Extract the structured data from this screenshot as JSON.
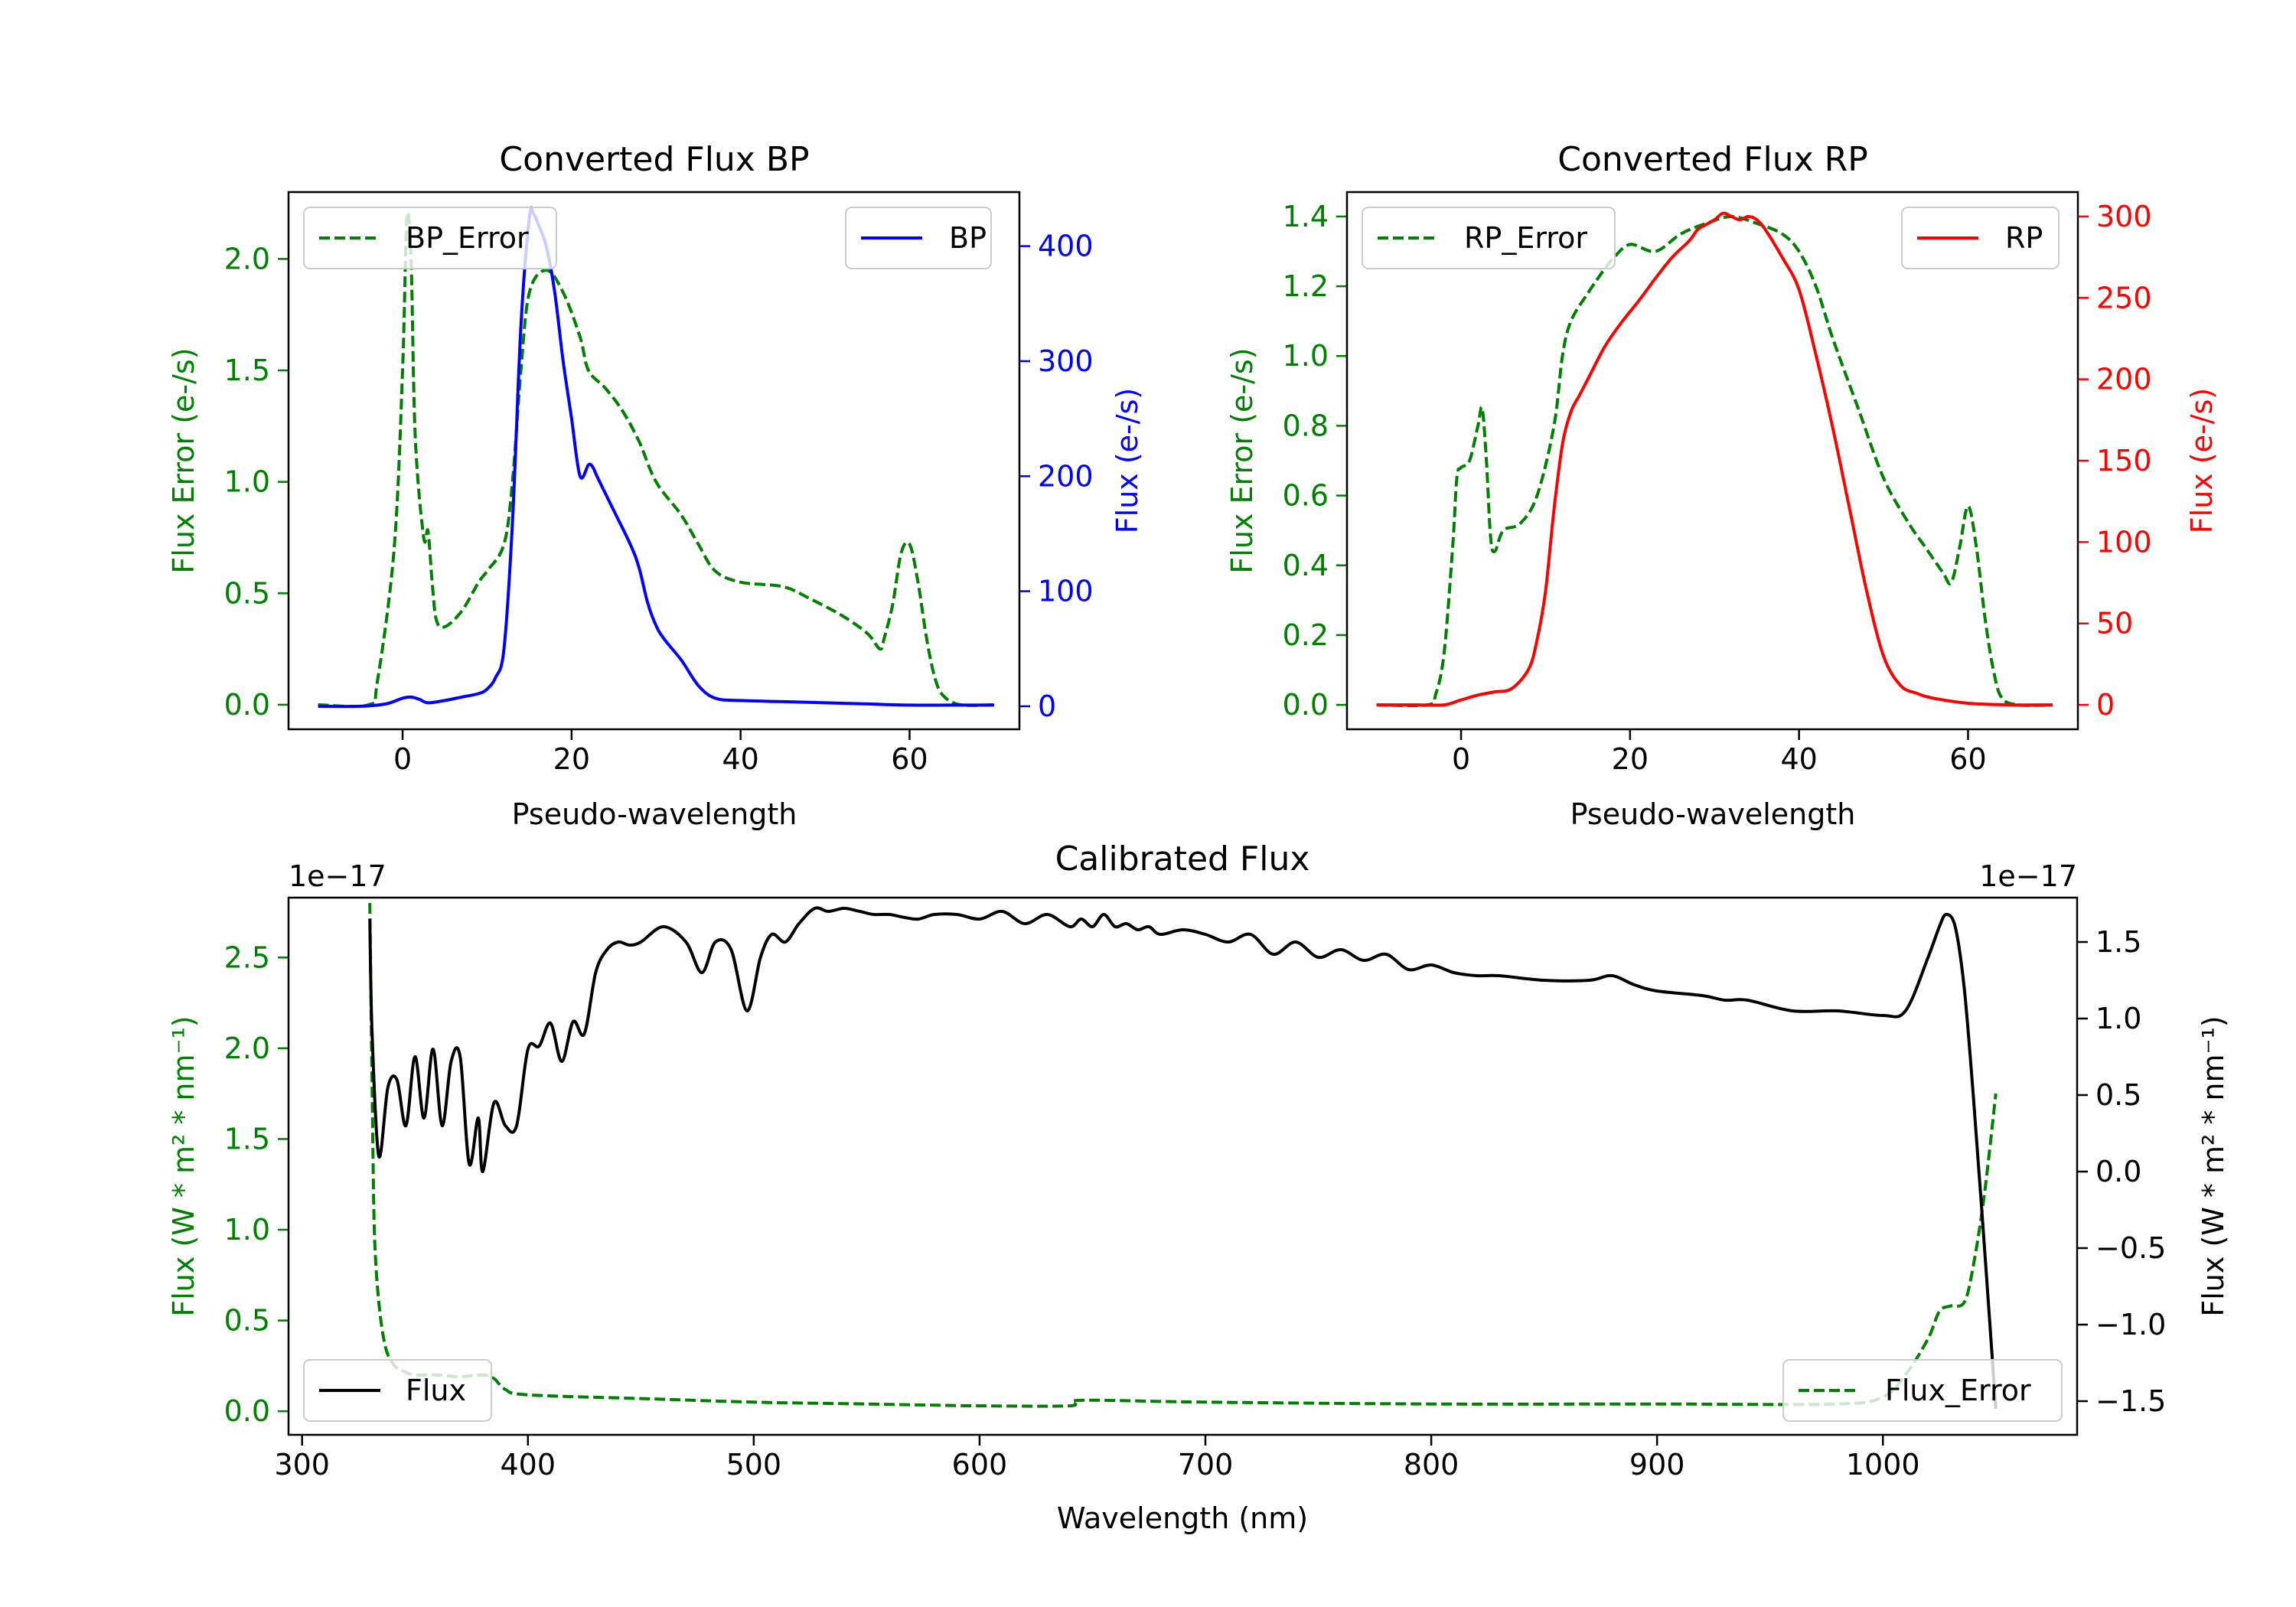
{
  "colors": {
    "bp": "#0000ff",
    "rp": "#ff0000",
    "error": "#008000",
    "flux": "#000000",
    "axis": "#000000"
  },
  "chart_data": [
    {
      "id": "bp",
      "type": "line",
      "title": "Converted Flux BP",
      "xlabel": "Pseudo-wavelength",
      "ylabel_left": "Flux Error (e-/s)",
      "ylabel_right": "Flux (e-/s)",
      "xlim": [
        -13.5,
        73
      ],
      "ylim_left": [
        -0.11,
        2.3
      ],
      "ylim_right": [
        -20,
        447
      ],
      "xticks": [
        0,
        20,
        40,
        60
      ],
      "yticks_left": [
        0.0,
        0.5,
        1.0,
        1.5,
        2.0
      ],
      "ytick_labels_left": [
        "0.0",
        "0.5",
        "1.0",
        "1.5",
        "2.0"
      ],
      "yticks_right": [
        0,
        100,
        200,
        300,
        400
      ],
      "ytick_labels_right": [
        "0",
        "100",
        "200",
        "300",
        "400"
      ],
      "legend_left": {
        "label": "BP_Error",
        "placement": "upper left"
      },
      "legend_right": {
        "label": "BP",
        "placement": "upper right"
      },
      "series": [
        {
          "name": "BP_Error",
          "axis": "left",
          "style": "dashed",
          "color": "#008000",
          "x": [
            -10,
            -4,
            -3,
            -1,
            0,
            0.5,
            1,
            1.5,
            2.5,
            3,
            3.5,
            4,
            5,
            7,
            9,
            10,
            12,
            13,
            14,
            15,
            17,
            19,
            21,
            22,
            24,
            26,
            28,
            30,
            33,
            35,
            37,
            40,
            45,
            48,
            52,
            55,
            56.5,
            57,
            58,
            59,
            60,
            61,
            62,
            63,
            64,
            66,
            70
          ],
          "y": [
            0.0,
            0.0,
            0.1,
            0.7,
            1.5,
            2.18,
            2.0,
            1.2,
            0.75,
            0.78,
            0.55,
            0.38,
            0.35,
            0.42,
            0.55,
            0.6,
            0.72,
            1.0,
            1.5,
            1.85,
            1.95,
            1.85,
            1.65,
            1.5,
            1.42,
            1.32,
            1.18,
            1.0,
            0.85,
            0.72,
            0.6,
            0.55,
            0.53,
            0.48,
            0.4,
            0.32,
            0.25,
            0.3,
            0.45,
            0.68,
            0.72,
            0.55,
            0.3,
            0.12,
            0.04,
            0.0,
            0.0
          ]
        },
        {
          "name": "BP",
          "axis": "right",
          "style": "solid",
          "color": "#0000ff",
          "x": [
            -10,
            -5,
            -2,
            0,
            1,
            2,
            3,
            5,
            7,
            9,
            10,
            11,
            12,
            13,
            14,
            15,
            15.5,
            16,
            17,
            18,
            19,
            20,
            21,
            22,
            22.5,
            23,
            24,
            25,
            27,
            28,
            29,
            30,
            31,
            33,
            35,
            37,
            40,
            45,
            50,
            55,
            60,
            65,
            70
          ],
          "y": [
            0,
            0,
            2,
            7,
            8,
            6,
            3,
            5,
            8,
            11,
            15,
            25,
            50,
            160,
            330,
            425,
            428,
            420,
            400,
            360,
            300,
            250,
            200,
            210,
            208,
            200,
            185,
            170,
            140,
            120,
            90,
            70,
            58,
            40,
            18,
            7,
            5,
            4,
            3,
            2,
            1,
            1,
            1
          ]
        }
      ]
    },
    {
      "id": "rp",
      "type": "line",
      "title": "Converted Flux RP",
      "xlabel": "Pseudo-wavelength",
      "ylabel_left": "Flux Error (e-/s)",
      "ylabel_right": "Flux (e-/s)",
      "xlim": [
        -13.5,
        73
      ],
      "ylim_left": [
        -0.07,
        1.47
      ],
      "ylim_right": [
        -15,
        315
      ],
      "xticks": [
        0,
        20,
        40,
        60
      ],
      "yticks_left": [
        0.0,
        0.2,
        0.4,
        0.6,
        0.8,
        1.0,
        1.2,
        1.4
      ],
      "ytick_labels_left": [
        "0.0",
        "0.2",
        "0.4",
        "0.6",
        "0.8",
        "1.0",
        "1.2",
        "1.4"
      ],
      "yticks_right": [
        0,
        50,
        100,
        150,
        200,
        250,
        300
      ],
      "ytick_labels_right": [
        "0",
        "50",
        "100",
        "150",
        "200",
        "250",
        "300"
      ],
      "legend_left": {
        "label": "RP_Error",
        "placement": "upper left"
      },
      "legend_right": {
        "label": "RP",
        "placement": "upper right"
      },
      "series": [
        {
          "name": "RP_Error",
          "axis": "left",
          "style": "dashed",
          "color": "#008000",
          "x": [
            -10,
            -4,
            -3,
            -2,
            -1,
            -0.5,
            0,
            1,
            2,
            2.5,
            3,
            3.5,
            4,
            5,
            7,
            9,
            11,
            12,
            13,
            15,
            17,
            18,
            20,
            23,
            26,
            29,
            32,
            35,
            38,
            40,
            42,
            44,
            47,
            50,
            53,
            55,
            57,
            58,
            59,
            60,
            61,
            62,
            63,
            64,
            66,
            70
          ],
          "y": [
            0.0,
            0.0,
            0.03,
            0.15,
            0.45,
            0.65,
            0.68,
            0.7,
            0.8,
            0.85,
            0.7,
            0.48,
            0.44,
            0.5,
            0.52,
            0.6,
            0.8,
            1.0,
            1.1,
            1.18,
            1.25,
            1.28,
            1.32,
            1.3,
            1.35,
            1.38,
            1.4,
            1.38,
            1.35,
            1.3,
            1.2,
            1.05,
            0.85,
            0.65,
            0.52,
            0.45,
            0.38,
            0.35,
            0.45,
            0.57,
            0.45,
            0.25,
            0.1,
            0.02,
            0.0,
            0.0
          ]
        },
        {
          "name": "RP",
          "axis": "right",
          "style": "solid",
          "color": "#ff0000",
          "x": [
            -10,
            -5,
            -2,
            0,
            2,
            4,
            6,
            8,
            9,
            10,
            11,
            12,
            13,
            14,
            15,
            17,
            19,
            21,
            23,
            25,
            27,
            28,
            29,
            30,
            31,
            32,
            33,
            34,
            35,
            36,
            38,
            40,
            42,
            44,
            46,
            48,
            50,
            52,
            54,
            56,
            60,
            65,
            70
          ],
          "y": [
            0,
            0,
            0,
            3,
            6,
            8,
            10,
            22,
            40,
            70,
            120,
            160,
            180,
            190,
            200,
            220,
            235,
            248,
            262,
            275,
            285,
            292,
            295,
            298,
            302,
            300,
            298,
            300,
            298,
            292,
            275,
            255,
            215,
            170,
            120,
            70,
            30,
            12,
            7,
            4,
            1,
            0,
            0
          ]
        }
      ]
    },
    {
      "id": "calibrated",
      "type": "line",
      "title": "Calibrated Flux",
      "xlabel": "Wavelength (nm)",
      "ylabel_left": "Flux (W * m² * nm⁻¹)",
      "ylabel_right": "Flux (W * m² * nm⁻¹)",
      "offset_left": "1e−17",
      "offset_right": "1e−17",
      "xlim": [
        294,
        1086
      ],
      "ylim_left": [
        -0.13,
        2.83
      ],
      "ylim_right": [
        -1.72,
        1.79
      ],
      "xticks": [
        300,
        400,
        500,
        600,
        700,
        800,
        900,
        1000
      ],
      "yticks_left": [
        0.0,
        0.5,
        1.0,
        1.5,
        2.0,
        2.5
      ],
      "ytick_labels_left": [
        "0.0",
        "0.5",
        "1.0",
        "1.5",
        "2.0",
        "2.5"
      ],
      "yticks_right": [
        -1.5,
        -1.0,
        -0.5,
        0.0,
        0.5,
        1.0,
        1.5
      ],
      "ytick_labels_right": [
        "−1.5",
        "−1.0",
        "−0.5",
        "0.0",
        "0.5",
        "1.0",
        "1.5"
      ],
      "legend_left": {
        "label": "Flux",
        "placement": "lower left"
      },
      "legend_right": {
        "label": "Flux_Error",
        "placement": "lower right"
      },
      "series": [
        {
          "name": "Flux",
          "axis": "right",
          "style": "solid",
          "color": "#000000",
          "x": [
            330,
            331,
            334,
            338,
            342,
            346,
            350,
            354,
            358,
            362,
            366,
            370,
            374,
            378,
            380,
            385,
            390,
            395,
            400,
            405,
            410,
            415,
            420,
            425,
            430,
            435,
            440,
            445,
            450,
            460,
            470,
            477,
            483,
            490,
            497,
            503,
            508,
            514,
            520,
            527,
            533,
            540,
            547,
            553,
            560,
            567,
            573,
            580,
            590,
            600,
            610,
            620,
            630,
            640,
            645,
            650,
            655,
            660,
            665,
            670,
            675,
            680,
            690,
            700,
            710,
            720,
            730,
            740,
            750,
            760,
            770,
            780,
            790,
            800,
            810,
            820,
            830,
            850,
            870,
            880,
            890,
            900,
            920,
            930,
            940,
            960,
            980,
            1000,
            1010,
            1020,
            1025,
            1028,
            1032,
            1036,
            1040,
            1045,
            1050
          ],
          "y": [
            1.65,
            0.9,
            0.1,
            0.55,
            0.6,
            0.3,
            0.75,
            0.35,
            0.8,
            0.3,
            0.72,
            0.75,
            0.05,
            0.35,
            0.0,
            0.45,
            0.3,
            0.3,
            0.8,
            0.82,
            0.97,
            0.72,
            0.98,
            0.9,
            1.3,
            1.45,
            1.5,
            1.48,
            1.5,
            1.6,
            1.5,
            1.3,
            1.5,
            1.45,
            1.05,
            1.4,
            1.55,
            1.5,
            1.62,
            1.72,
            1.7,
            1.72,
            1.7,
            1.68,
            1.68,
            1.66,
            1.65,
            1.68,
            1.68,
            1.65,
            1.7,
            1.62,
            1.68,
            1.6,
            1.65,
            1.6,
            1.68,
            1.6,
            1.62,
            1.58,
            1.6,
            1.55,
            1.58,
            1.55,
            1.5,
            1.55,
            1.42,
            1.5,
            1.4,
            1.45,
            1.38,
            1.42,
            1.32,
            1.35,
            1.3,
            1.28,
            1.28,
            1.25,
            1.25,
            1.28,
            1.22,
            1.18,
            1.15,
            1.12,
            1.12,
            1.05,
            1.05,
            1.02,
            1.05,
            1.4,
            1.6,
            1.68,
            1.6,
            1.2,
            0.5,
            -0.5,
            -1.55
          ]
        },
        {
          "name": "Flux_Error",
          "axis": "left",
          "style": "dashed",
          "color": "#008000",
          "x": [
            330,
            331,
            332,
            334,
            337,
            341,
            345,
            350,
            360,
            370,
            380,
            385,
            390,
            400,
            450,
            500,
            550,
            600,
            640,
            645,
            700,
            800,
            900,
            980,
            1000,
            1010,
            1020,
            1025,
            1030,
            1036,
            1040,
            1045,
            1050
          ],
          "y": [
            2.8,
            1.8,
            1.0,
            0.6,
            0.35,
            0.25,
            0.22,
            0.2,
            0.2,
            0.19,
            0.2,
            0.18,
            0.12,
            0.09,
            0.07,
            0.05,
            0.04,
            0.03,
            0.03,
            0.06,
            0.05,
            0.04,
            0.04,
            0.04,
            0.08,
            0.2,
            0.4,
            0.55,
            0.58,
            0.6,
            0.8,
            1.2,
            1.75
          ]
        }
      ]
    }
  ]
}
